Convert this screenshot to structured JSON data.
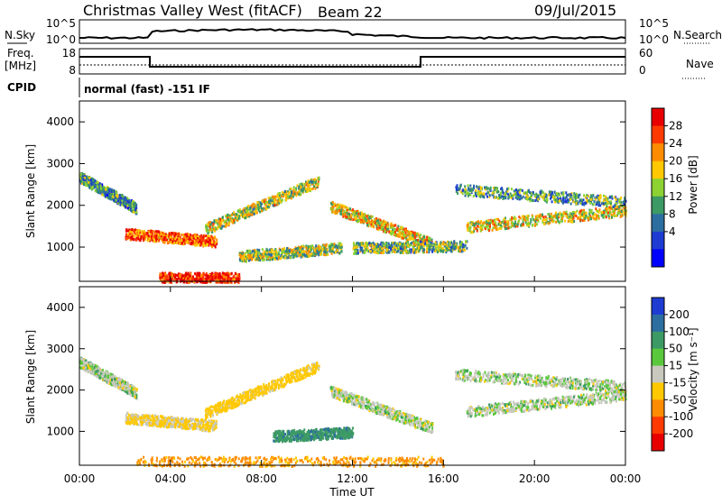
{
  "header": {
    "title": "Christmas Valley West (fitACF)",
    "beam": "Beam 22",
    "date": "09/Jul/2015"
  },
  "top_panels": {
    "nsky_label": "N.Sky",
    "nsky_ticks": [
      "10^5",
      "10^0"
    ],
    "nsearch_label": "N.Search",
    "nsearch_ticks": [
      "10^5",
      "10^0"
    ],
    "freq_label": "Freq.",
    "freq_unit": "[MHz]",
    "freq_ticks": [
      "18",
      "8"
    ],
    "nave_label": "Nave",
    "nave_ticks": [
      "60",
      "0"
    ],
    "cpid_label": "CPID",
    "cpid_value": "normal (fast) -151 IF"
  },
  "chart_data": [
    {
      "type": "heatmap",
      "panel": "power",
      "ylabel": "Slant Range [km]",
      "xlabel": "",
      "yticks": [
        "4000",
        "3000",
        "2000",
        "1000"
      ],
      "xlim": [
        0,
        24
      ],
      "ylim": [
        180,
        4500
      ],
      "colorbar": {
        "label": "Power [dB]",
        "ticks": [
          "28",
          "24",
          "20",
          "16",
          "12",
          "8",
          "4"
        ],
        "colors": [
          "#e80000",
          "#ff3a00",
          "#ff8c00",
          "#ffc800",
          "#8cd232",
          "#3c9a64",
          "#2d6ea0",
          "#1e3cd2",
          "#0000ff"
        ]
      },
      "echo_bands": [
        {
          "t0": 0.0,
          "t1": 2.5,
          "r0": 2700,
          "r1": 1950,
          "level": 0.35
        },
        {
          "t0": 2.0,
          "t1": 6.0,
          "r0": 1350,
          "r1": 1150,
          "level": 0.8
        },
        {
          "t0": 5.5,
          "t1": 10.5,
          "r0": 1450,
          "r1": 2600,
          "level": 0.55
        },
        {
          "t0": 7.0,
          "t1": 11.5,
          "r0": 800,
          "r1": 1000,
          "level": 0.5
        },
        {
          "t0": 11.0,
          "t1": 15.5,
          "r0": 2000,
          "r1": 1100,
          "level": 0.6
        },
        {
          "t0": 12.0,
          "t1": 17.0,
          "r0": 1000,
          "r1": 1050,
          "level": 0.45
        },
        {
          "t0": 17.0,
          "t1": 24.0,
          "r0": 1500,
          "r1": 1900,
          "level": 0.6
        },
        {
          "t0": 16.5,
          "t1": 24.0,
          "r0": 2400,
          "r1": 2100,
          "level": 0.4
        },
        {
          "t0": 3.5,
          "t1": 7.0,
          "r0": 280,
          "r1": 280,
          "level": 0.9
        }
      ]
    },
    {
      "type": "heatmap",
      "panel": "velocity",
      "ylabel": "Slant Range [km]",
      "xlabel": "Time UT",
      "yticks": [
        "4000",
        "3000",
        "2000",
        "1000"
      ],
      "xticks": [
        "00:00",
        "04:00",
        "08:00",
        "12:00",
        "16:00",
        "20:00",
        "00:00"
      ],
      "xlim": [
        0,
        24
      ],
      "ylim": [
        180,
        4500
      ],
      "colorbar": {
        "label": "Velocity [m s⁻¹]",
        "ticks": [
          "200",
          "100",
          "50",
          "15",
          "-15",
          "-50",
          "-100",
          "-200"
        ],
        "colors": [
          "#1e3cd2",
          "#2d6ea0",
          "#3c9a64",
          "#5ac83c",
          "#c8c8be",
          "#ffc800",
          "#ff8c00",
          "#ff3a00",
          "#e80000"
        ]
      },
      "echo_bands": [
        {
          "t0": 0.0,
          "t1": 2.5,
          "r0": 2700,
          "r1": 1950,
          "vel": 0
        },
        {
          "t0": 2.0,
          "t1": 6.0,
          "r0": 1350,
          "r1": 1150,
          "vel": -20
        },
        {
          "t0": 5.5,
          "t1": 10.5,
          "r0": 1450,
          "r1": 2600,
          "vel": -30
        },
        {
          "t0": 8.5,
          "t1": 12.0,
          "r0": 900,
          "r1": 1000,
          "vel": 40
        },
        {
          "t0": 11.0,
          "t1": 15.5,
          "r0": 2000,
          "r1": 1100,
          "vel": 0
        },
        {
          "t0": 17.0,
          "t1": 24.0,
          "r0": 1500,
          "r1": 1900,
          "vel": 0
        },
        {
          "t0": 16.5,
          "t1": 24.0,
          "r0": 2400,
          "r1": 2100,
          "vel": 0
        },
        {
          "t0": 2.5,
          "t1": 16.0,
          "r0": 280,
          "r1": 280,
          "vel": -60
        }
      ]
    }
  ]
}
